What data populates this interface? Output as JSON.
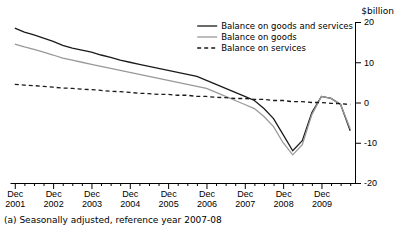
{
  "chart_data": {
    "type": "line",
    "ylabel": "$billion",
    "footnote": "(a) Seasonally adjusted, reference year 2007-08",
    "categories": [
      "Dec\n2001",
      null,
      null,
      null,
      "Dec\n2002",
      null,
      null,
      null,
      "Dec\n2003",
      null,
      null,
      null,
      "Dec\n2004",
      null,
      null,
      null,
      "Dec\n2005",
      null,
      null,
      null,
      "Dec\n2006",
      null,
      null,
      null,
      "Dec\n2007",
      null,
      null,
      null,
      "Dec\n2008",
      null,
      null,
      null,
      "Dec\n2009",
      null,
      null,
      null
    ],
    "series": [
      {
        "name": "Balance on goods and services",
        "color": "#1a1a1a",
        "line_style": "solid",
        "values": [
          18.5,
          17.5,
          16.8,
          16.0,
          15.2,
          14.2,
          13.5,
          13.0,
          12.5,
          11.8,
          11.2,
          10.5,
          10.0,
          9.5,
          9.0,
          8.5,
          8.0,
          7.5,
          7.0,
          6.5,
          5.5,
          4.5,
          3.5,
          2.5,
          1.5,
          0.5,
          -1.5,
          -4.0,
          -8.0,
          -12.0,
          -9.5,
          -2.5,
          1.5,
          1.0,
          -0.5,
          -7.0
        ]
      },
      {
        "name": "Balance on goods",
        "color": "#999999",
        "line_style": "solid",
        "values": [
          14.5,
          13.8,
          13.2,
          12.5,
          11.8,
          11.0,
          10.5,
          10.0,
          9.5,
          9.0,
          8.5,
          8.0,
          7.5,
          7.0,
          6.5,
          6.0,
          5.5,
          5.0,
          4.5,
          4.0,
          3.5,
          2.5,
          1.5,
          0.5,
          -0.5,
          -1.5,
          -3.5,
          -6.0,
          -10.0,
          -13.0,
          -10.5,
          -3.0,
          1.5,
          1.0,
          -0.5,
          -6.5
        ]
      },
      {
        "name": "Balance on services",
        "color": "#1a1a1a",
        "line_style": "dashed",
        "values": [
          4.5,
          4.3,
          4.2,
          4.0,
          3.8,
          3.6,
          3.5,
          3.3,
          3.2,
          3.0,
          2.8,
          2.7,
          2.5,
          2.3,
          2.2,
          2.0,
          2.0,
          1.8,
          1.8,
          1.5,
          1.5,
          1.3,
          1.2,
          1.0,
          1.0,
          0.8,
          0.8,
          0.5,
          0.5,
          0.2,
          0.2,
          0.0,
          0.0,
          -0.2,
          -0.3,
          -0.5
        ]
      }
    ],
    "ylim": [
      -20,
      20
    ],
    "yticks": [
      -20,
      -10,
      0,
      10,
      20
    ],
    "grid": false,
    "legend": "upper right"
  }
}
